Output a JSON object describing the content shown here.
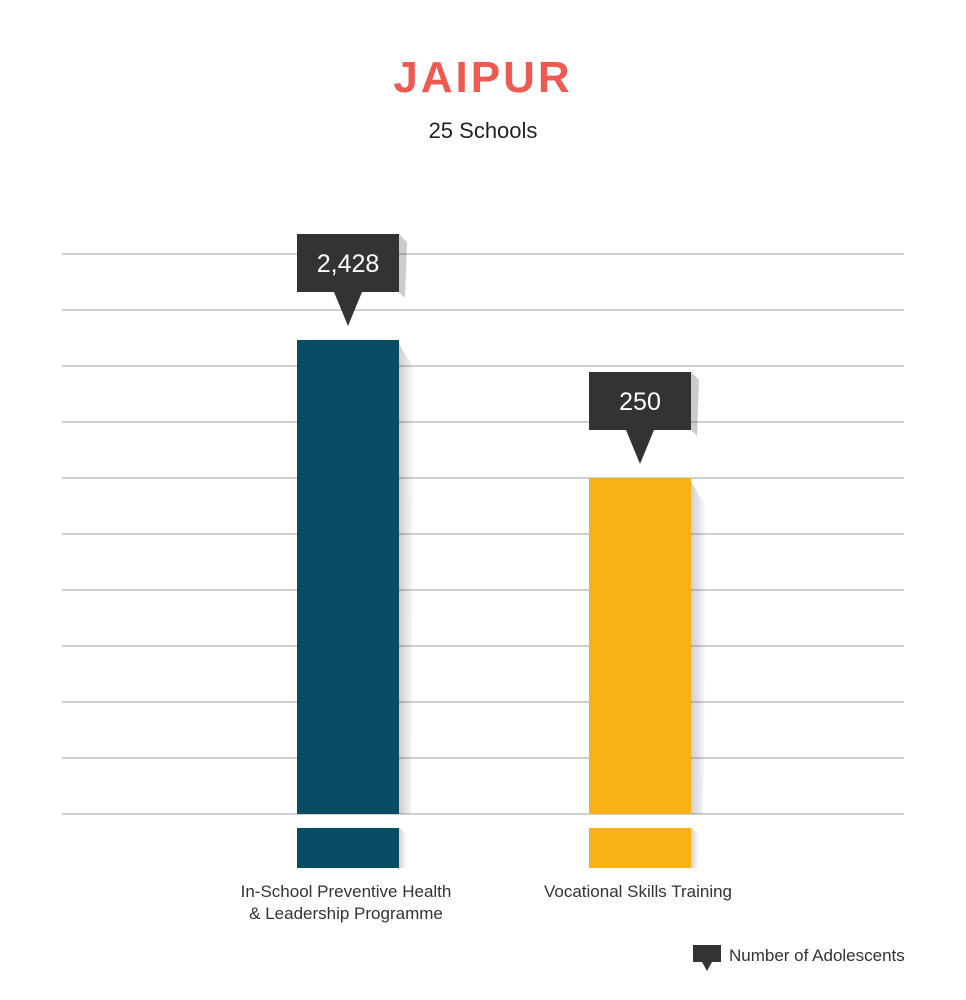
{
  "chart_data": {
    "type": "bar",
    "title": "JAIPUR",
    "subtitle": "25 Schools",
    "categories": [
      "In-School Preventive Health\n& Leadership Programme",
      "Vocational Skills Training"
    ],
    "series": [
      {
        "name": "Number of Adolescents",
        "values": [
          2428,
          250
        ],
        "value_labels": [
          "2,428",
          "250"
        ],
        "colors": [
          "#0a4c63",
          "#f9b216"
        ]
      }
    ],
    "grid": true,
    "legend": "bottom-right"
  },
  "colors": {
    "title": "#ee5a52",
    "grid": "#b5b5b5",
    "callout": "#333333",
    "callout_text": "#ffffff"
  }
}
